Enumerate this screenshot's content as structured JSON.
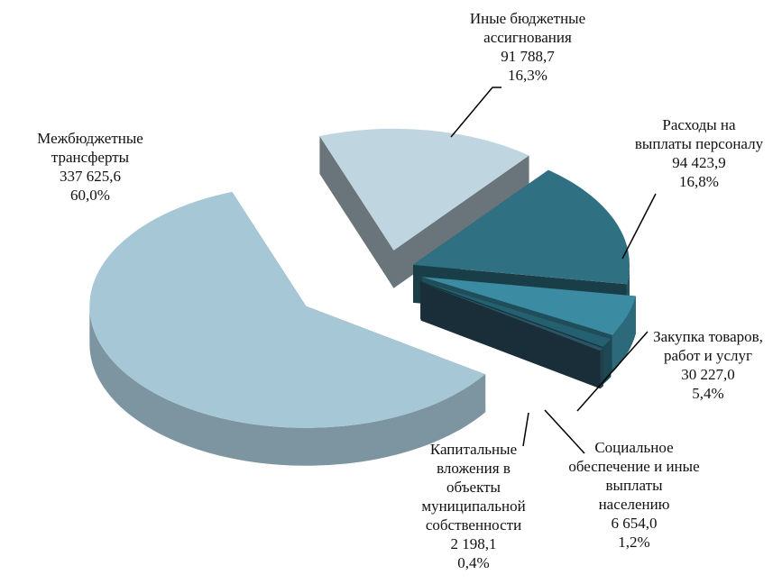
{
  "chart_data": {
    "type": "pie",
    "categories": [
      "Иные бюджетные\nассигнования",
      "Расходы на\nвыплаты персоналу",
      "Закупка товаров,\nработ и услуг",
      "Социальное\nобеспечение и иные\nвыплаты\nнаселению",
      "Капитальные\nвложения в\nобъекты\nмуниципальной\nсобственности",
      "Межбюджетные\nтрансферты"
    ],
    "values": [
      91788.7,
      94423.9,
      30227.0,
      6654.0,
      2198.1,
      337625.6
    ],
    "value_labels": [
      "91 788,7",
      "94 423,9",
      "30 227,0",
      "6 654,0",
      "2 198,1",
      "337 625,6"
    ],
    "percentages": [
      16.3,
      16.8,
      5.4,
      1.2,
      0.4,
      60.0
    ],
    "percentage_labels": [
      "16,3%",
      "16,8%",
      "5,4%",
      "1,2%",
      "0,4%",
      "60,0%"
    ],
    "colors": [
      "#bfd5df",
      "#2f7183",
      "#3b8ca3",
      "#24606f",
      "#2d5466",
      "#a6c7d5"
    ]
  }
}
